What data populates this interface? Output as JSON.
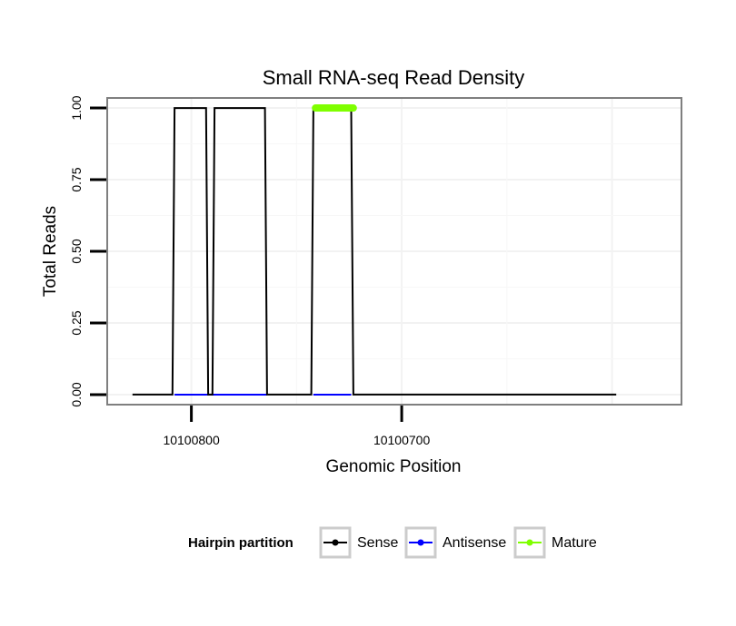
{
  "chart_data": {
    "type": "line",
    "title": "Small RNA-seq Read Density",
    "xlabel": "Genomic Position",
    "ylabel": "Total Reads",
    "x_reversed": true,
    "xlim": [
      10100840,
      10100567
    ],
    "ylim": [
      -0.035,
      1.035
    ],
    "x_ticks": [
      10100800,
      10100700
    ],
    "x_tick_labels": [
      "10100800",
      "10100700"
    ],
    "y_ticks": [
      0,
      0.25,
      0.5,
      0.75,
      1
    ],
    "y_tick_labels": [
      "0.00",
      "0.25",
      "0.50",
      "0.75",
      "1.00"
    ],
    "grid": true,
    "legend": {
      "title": "Hairpin partition",
      "position": "bottom",
      "entries": [
        "Sense",
        "Antisense",
        "Mature"
      ]
    },
    "colors": {
      "Sense": "#000000",
      "Antisense": "#0000ff",
      "Mature": "#7fff00"
    },
    "series": [
      {
        "name": "Sense",
        "x": [
          10100828,
          10100809,
          10100808,
          10100793,
          10100792,
          10100790,
          10100789,
          10100765,
          10100764,
          10100743,
          10100742,
          10100724,
          10100723,
          10100598
        ],
        "y": [
          0,
          0,
          1,
          1,
          0,
          0,
          1,
          1,
          0,
          0,
          1,
          1,
          0,
          0
        ]
      },
      {
        "name": "Antisense",
        "x": [
          10100808,
          10100764,
          10100742,
          10100724
        ],
        "y": [
          0,
          0,
          0,
          0
        ],
        "segments": [
          [
            0,
            1
          ],
          [
            2,
            3
          ]
        ]
      },
      {
        "name": "Mature",
        "x": [
          10100741,
          10100723
        ],
        "y": [
          1,
          1
        ]
      }
    ]
  }
}
